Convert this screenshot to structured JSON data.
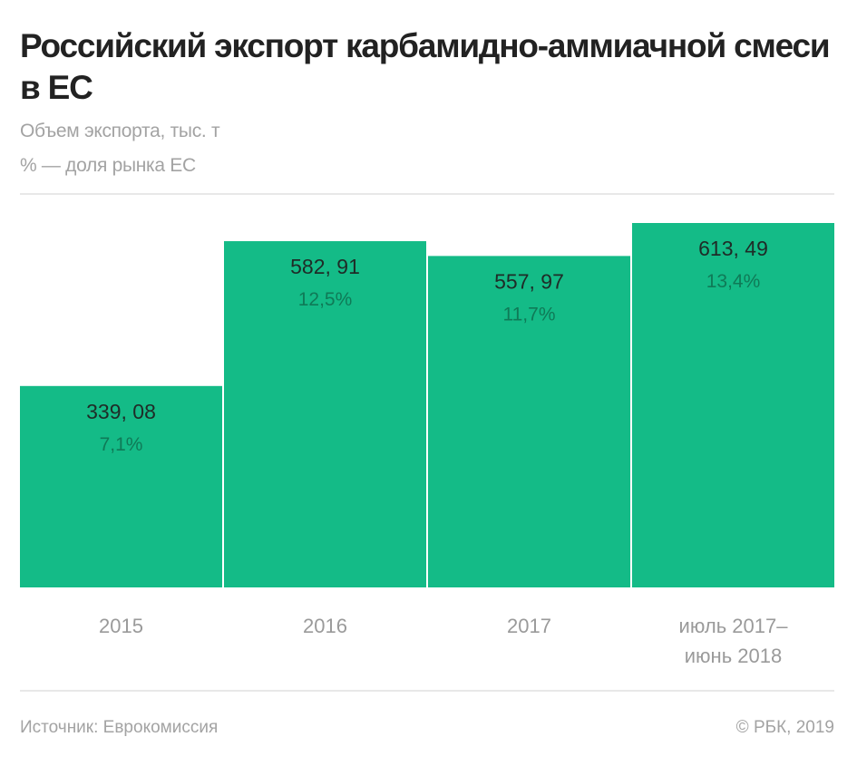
{
  "title": "Российский экспорт карбамидно-аммиачной смеси в ЕС",
  "subtitle_lines": [
    "Объем экспорта, тыс. т",
    "% — доля рынка ЕС"
  ],
  "footer": {
    "source": "Источник: Еврокомиссия",
    "copyright": "© РБК, 2019"
  },
  "colors": {
    "bar": "#14bb87",
    "value_text": "#1f2b27",
    "share_text": "#0f7a57",
    "label_text": "#9a9a9a"
  },
  "chart_data": {
    "type": "bar",
    "title": "Российский экспорт карбамидно-аммиачной смеси в ЕС",
    "xlabel": "",
    "ylabel": "Объем экспорта, тыс. т",
    "categories": [
      [
        "2015"
      ],
      [
        "2016"
      ],
      [
        "2017"
      ],
      [
        "июль 2017–",
        "июнь 2018"
      ]
    ],
    "series": [
      {
        "name": "Объем экспорта, тыс. т",
        "values": [
          339.08,
          582.91,
          557.97,
          613.49
        ],
        "labels": [
          "339, 08",
          "582, 91",
          "557, 97",
          "613, 49"
        ]
      },
      {
        "name": "% — доля рынка ЕС",
        "values": [
          7.1,
          12.5,
          11.7,
          13.4
        ],
        "labels": [
          "7,1%",
          "12,5%",
          "11,7%",
          "13,4%"
        ]
      }
    ],
    "ylim": [
      0,
      613.49
    ],
    "grid": false,
    "legend": "none"
  }
}
